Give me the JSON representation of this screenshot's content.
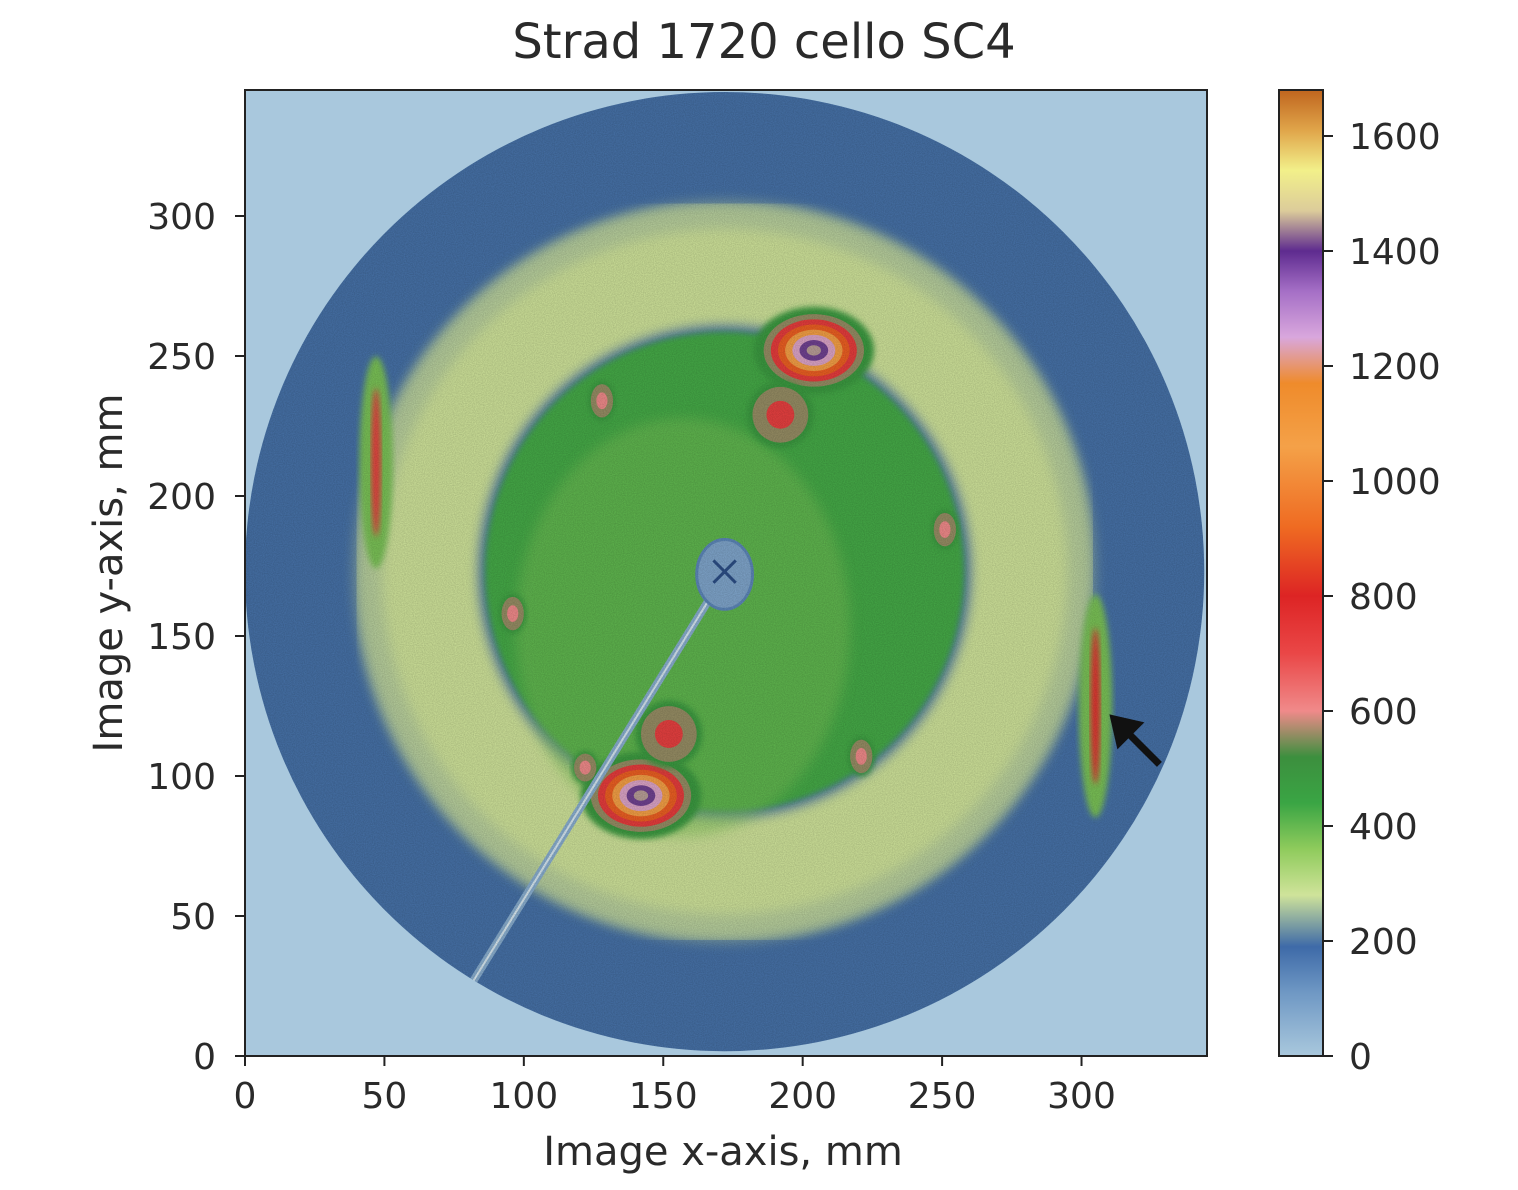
{
  "chart_data": {
    "type": "heatmap",
    "title": "Strad 1720 cello SC4",
    "xlabel": "Image x-axis, mm",
    "ylabel": "Image y-axis, mm",
    "xlim": [
      0,
      345
    ],
    "ylim": [
      0,
      345
    ],
    "xticks": [
      0,
      50,
      100,
      150,
      200,
      250,
      300
    ],
    "yticks": [
      0,
      50,
      100,
      150,
      200,
      250,
      300
    ],
    "colorbar": {
      "range": [
        0,
        1680
      ],
      "ticks": [
        0,
        200,
        400,
        600,
        800,
        1000,
        1200,
        1400,
        1600
      ],
      "stops": [
        {
          "value": 0,
          "color": "#a9c8dd"
        },
        {
          "value": 110,
          "color": "#6f98c4"
        },
        {
          "value": 190,
          "color": "#3e6aa8"
        },
        {
          "value": 280,
          "color": "#cfe39a"
        },
        {
          "value": 360,
          "color": "#8fcb5c"
        },
        {
          "value": 440,
          "color": "#3aa544"
        },
        {
          "value": 520,
          "color": "#3c8f3e"
        },
        {
          "value": 600,
          "color": "#f08a8a"
        },
        {
          "value": 700,
          "color": "#ea4747"
        },
        {
          "value": 800,
          "color": "#dd2424"
        },
        {
          "value": 920,
          "color": "#ef6b22"
        },
        {
          "value": 1060,
          "color": "#f4a148"
        },
        {
          "value": 1170,
          "color": "#ef8b2b"
        },
        {
          "value": 1250,
          "color": "#d9a7dd"
        },
        {
          "value": 1330,
          "color": "#a56fc6"
        },
        {
          "value": 1400,
          "color": "#5e2b8f"
        },
        {
          "value": 1470,
          "color": "#dccc9a"
        },
        {
          "value": 1540,
          "color": "#f2f08a"
        },
        {
          "value": 1610,
          "color": "#e0a54a"
        },
        {
          "value": 1680,
          "color": "#c0651e"
        }
      ]
    },
    "detector": {
      "center": [
        172,
        173
      ],
      "radius": 172,
      "inner_radius": 10
    },
    "rings": [
      {
        "name": "outer diffuse ring",
        "radius": 110,
        "width": 20,
        "level": 280
      },
      {
        "name": "inner green disc",
        "radius": 86,
        "level": 430
      }
    ],
    "spots": [
      {
        "x": 204,
        "y": 252,
        "rx": 18,
        "ry": 13,
        "peak": 1450
      },
      {
        "x": 192,
        "y": 229,
        "rx": 10,
        "ry": 10,
        "peak": 720
      },
      {
        "x": 142,
        "y": 93,
        "rx": 18,
        "ry": 13,
        "peak": 1450
      },
      {
        "x": 152,
        "y": 115,
        "rx": 10,
        "ry": 10,
        "peak": 720
      },
      {
        "x": 128,
        "y": 234,
        "rx": 4,
        "ry": 6,
        "peak": 600
      },
      {
        "x": 96,
        "y": 158,
        "rx": 4,
        "ry": 6,
        "peak": 600
      },
      {
        "x": 251,
        "y": 188,
        "rx": 4,
        "ry": 6,
        "peak": 600
      },
      {
        "x": 221,
        "y": 107,
        "rx": 4,
        "ry": 6,
        "peak": 600
      },
      {
        "x": 122,
        "y": 103,
        "rx": 4,
        "ry": 5,
        "peak": 600
      }
    ],
    "arcs": [
      {
        "x": 305,
        "y": 125,
        "rx": 3,
        "ry": 40,
        "peak": 760
      },
      {
        "x": 47,
        "y": 212,
        "rx": 3,
        "ry": 38,
        "peak": 720
      }
    ],
    "beamstop": {
      "from": [
        172,
        172
      ],
      "to": [
        82,
        27
      ]
    },
    "annotation": {
      "type": "arrow",
      "points_to": [
        310,
        122
      ]
    }
  }
}
